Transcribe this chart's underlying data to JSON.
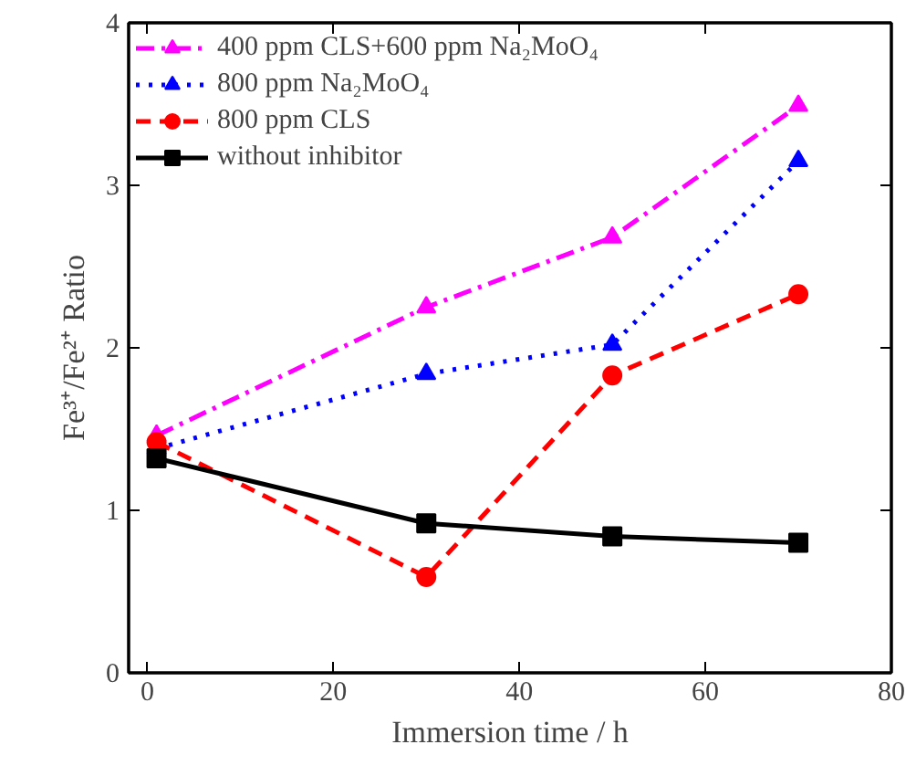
{
  "chart_data": {
    "type": "line",
    "xlabel": "Immersion time / h",
    "ylabel": "Fe³⁺/Fe²⁺ Ratio",
    "x": [
      1,
      30,
      50,
      70
    ],
    "series": [
      {
        "name": "400 ppm CLS+600 ppm Na₂MoO₄",
        "color": "#ff00ff",
        "values": [
          1.46,
          2.25,
          2.68,
          3.49
        ],
        "marker": "triangle",
        "line_style": "dashdot"
      },
      {
        "name": "800 ppm Na₂MoO₄",
        "color": "#0000ff",
        "values": [
          1.38,
          1.84,
          2.02,
          3.15
        ],
        "marker": "triangle",
        "line_style": "dotted"
      },
      {
        "name": "800 ppm CLS",
        "color": "#ff0000",
        "values": [
          1.42,
          0.59,
          1.83,
          2.33
        ],
        "marker": "circle",
        "line_style": "dashed"
      },
      {
        "name": "without inhibitor",
        "color": "#000000",
        "values": [
          1.32,
          0.92,
          0.84,
          0.8
        ],
        "marker": "square",
        "line_style": "solid"
      }
    ],
    "xlim": [
      -2,
      80
    ],
    "ylim": [
      0,
      4
    ],
    "xticks": [
      0,
      20,
      40,
      60,
      80
    ],
    "yticks": [
      0,
      1,
      2,
      3,
      4
    ],
    "grid": false,
    "legend": "top left"
  }
}
